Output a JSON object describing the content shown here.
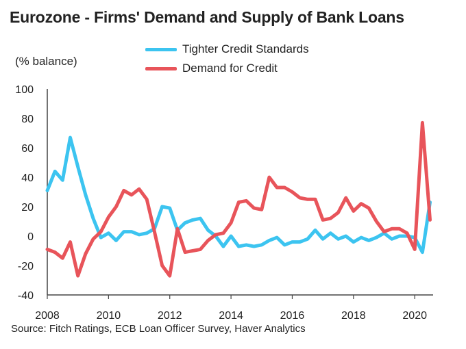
{
  "chart_data": {
    "type": "line",
    "title": "Eurozone - Firms' Demand and Supply of Bank Loans",
    "ylabel": "(% balance)",
    "xlabel": "",
    "ylim": [
      -40,
      100
    ],
    "xlim": [
      2008,
      2020.6
    ],
    "yticks": [
      100,
      80,
      60,
      40,
      20,
      0,
      -20,
      -40
    ],
    "xticks": [
      2008,
      2010,
      2012,
      2014,
      2016,
      2018,
      2020
    ],
    "source": "Source: Fitch Ratings, ECB Loan Officer Survey, Haver Analytics",
    "series": [
      {
        "name": "Tighter Credit Standards",
        "color": "#3cc4f0",
        "x": [
          2008.0,
          2008.25,
          2008.5,
          2008.75,
          2009.0,
          2009.25,
          2009.5,
          2009.75,
          2010.0,
          2010.25,
          2010.5,
          2010.75,
          2011.0,
          2011.25,
          2011.5,
          2011.75,
          2012.0,
          2012.25,
          2012.5,
          2012.75,
          2013.0,
          2013.25,
          2013.5,
          2013.75,
          2014.0,
          2014.25,
          2014.5,
          2014.75,
          2015.0,
          2015.25,
          2015.5,
          2015.75,
          2016.0,
          2016.25,
          2016.5,
          2016.75,
          2017.0,
          2017.25,
          2017.5,
          2017.75,
          2018.0,
          2018.25,
          2018.5,
          2018.75,
          2019.0,
          2019.25,
          2019.5,
          2019.75,
          2020.0,
          2020.25,
          2020.5
        ],
        "values": [
          31,
          44,
          38,
          67,
          47,
          28,
          12,
          -1,
          2,
          -3,
          3,
          3,
          1,
          2,
          5,
          20,
          19,
          4,
          9,
          11,
          12,
          4,
          0,
          -7,
          0,
          -7,
          -6,
          -7,
          -6,
          -3,
          -1,
          -6,
          -4,
          -4,
          -2,
          4,
          -2,
          2,
          -2,
          0,
          -4,
          -1,
          -3,
          -1,
          2,
          -2,
          0,
          0,
          -1,
          -11,
          23
        ]
      },
      {
        "name": "Demand for Credit",
        "color": "#e8545a",
        "x": [
          2008.0,
          2008.25,
          2008.5,
          2008.75,
          2009.0,
          2009.25,
          2009.5,
          2009.75,
          2010.0,
          2010.25,
          2010.5,
          2010.75,
          2011.0,
          2011.25,
          2011.5,
          2011.75,
          2012.0,
          2012.25,
          2012.5,
          2012.75,
          2013.0,
          2013.25,
          2013.5,
          2013.75,
          2014.0,
          2014.25,
          2014.5,
          2014.75,
          2015.0,
          2015.25,
          2015.5,
          2015.75,
          2016.0,
          2016.25,
          2016.5,
          2016.75,
          2017.0,
          2017.25,
          2017.5,
          2017.75,
          2018.0,
          2018.25,
          2018.5,
          2018.75,
          2019.0,
          2019.25,
          2019.5,
          2019.75,
          2020.0,
          2020.25,
          2020.5
        ],
        "values": [
          -9,
          -11,
          -15,
          -4,
          -27,
          -12,
          -2,
          3,
          13,
          20,
          31,
          28,
          32,
          25,
          3,
          -20,
          -27,
          5,
          -11,
          -10,
          -9,
          -3,
          1,
          2,
          9,
          23,
          24,
          19,
          18,
          40,
          33,
          33,
          30,
          26,
          25,
          25,
          11,
          12,
          16,
          26,
          17,
          22,
          19,
          10,
          3,
          5,
          5,
          2,
          -9,
          77,
          11
        ]
      }
    ]
  }
}
